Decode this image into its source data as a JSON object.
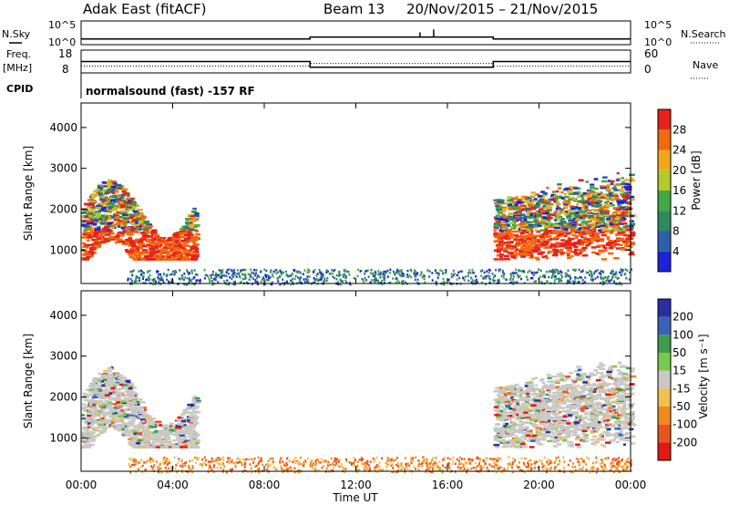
{
  "header": {
    "radar": "Adak East (fitACF)",
    "beam": "Beam 13",
    "dates": "20/Nov/2015 – 21/Nov/2015",
    "cpid_program": "normalsound (fast) -157 RF"
  },
  "strip_labels": {
    "nsky": "N.Sky",
    "nsearch": "N.Search",
    "freq_line1": "Freq.",
    "freq_line2": "[MHz]",
    "nave": "Nave",
    "cpid": "CPID"
  },
  "noise_axis": {
    "left_top": "10^5",
    "left_bottom": "10^0",
    "right_top": "10^5",
    "right_bottom": "10^0"
  },
  "freq_axis": {
    "left_top": "18",
    "left_bottom": "8",
    "right_top": "60",
    "right_bottom": "0"
  },
  "chart_data": [
    {
      "type": "line",
      "title": "N.Sky / N.Search",
      "x_hours": [
        0,
        10,
        10,
        18,
        18,
        24
      ],
      "y_log10": [
        1.2,
        1.2,
        1.6,
        1.6,
        1.2,
        1.2
      ],
      "spike_hours": [
        14.8,
        15.4
      ],
      "ylim_log10": [
        0,
        5
      ]
    },
    {
      "type": "line",
      "title": "Freq. / Nave",
      "freq_mhz": {
        "x_hours": [
          0,
          10,
          10,
          18,
          18,
          24
        ],
        "y": [
          13,
          13,
          10.5,
          10.5,
          13,
          13
        ]
      },
      "nave": {
        "x_hours": [
          0,
          10,
          10,
          18,
          18,
          24
        ],
        "y": [
          18,
          18,
          25,
          25,
          18,
          18
        ]
      },
      "freq_ylim": [
        8,
        18
      ],
      "nave_ylim": [
        0,
        60
      ]
    },
    {
      "type": "heatmap",
      "quantity": "Power",
      "ylabel": "Slant Range [km]",
      "ylim": [
        180,
        4600
      ],
      "yticks": [
        1000,
        2000,
        3000,
        4000
      ],
      "colorbar": {
        "label": "Power [dB]",
        "ticks": [
          4,
          8,
          12,
          16,
          20,
          24,
          28
        ],
        "range": [
          0,
          32
        ]
      },
      "echo_regions": [
        {
          "name": "evening",
          "x_hours": [
            0,
            5
          ],
          "range_km": [
            800,
            2900
          ],
          "typical_db": 24
        },
        {
          "name": "morning",
          "x_hours": [
            18,
            24
          ],
          "range_km": [
            800,
            3300
          ],
          "typical_db": 22
        },
        {
          "name": "near-range",
          "x_hours": [
            2,
            24
          ],
          "range_km": [
            180,
            550
          ],
          "typical_db": 6
        }
      ]
    },
    {
      "type": "heatmap",
      "quantity": "Velocity",
      "ylabel": "Slant Range [km]",
      "xlabel": "Time UT",
      "ylim": [
        180,
        4600
      ],
      "yticks": [
        1000,
        2000,
        3000,
        4000
      ],
      "xticks": [
        "00:00",
        "04:00",
        "08:00",
        "12:00",
        "16:00",
        "20:00",
        "00:00"
      ],
      "colorbar": {
        "label": "Velocity [m s⁻¹]",
        "ticks": [
          200,
          100,
          50,
          15,
          -15,
          -50,
          -100,
          -200
        ]
      },
      "echo_regions": [
        {
          "name": "evening",
          "x_hours": [
            0,
            5
          ],
          "range_km": [
            800,
            2900
          ],
          "typical_ms": 0
        },
        {
          "name": "morning",
          "x_hours": [
            18,
            24
          ],
          "range_km": [
            800,
            3300
          ],
          "typical_ms": 0
        },
        {
          "name": "near-range",
          "x_hours": [
            2,
            24
          ],
          "range_km": [
            180,
            550
          ],
          "typical_ms": -40
        }
      ]
    }
  ],
  "colors": {
    "power": [
      "#1e22d8",
      "#2f5fa8",
      "#2d8a5f",
      "#43a845",
      "#b5c92c",
      "#f0a81a",
      "#f06a10",
      "#e8211c"
    ],
    "velocity": [
      "#2a2ea0",
      "#3a63b8",
      "#3c9c4f",
      "#7ac94a",
      "#c8c8c4",
      "#f0c050",
      "#f08a20",
      "#e8551c",
      "#e01a10"
    ],
    "trace": "#000000"
  }
}
